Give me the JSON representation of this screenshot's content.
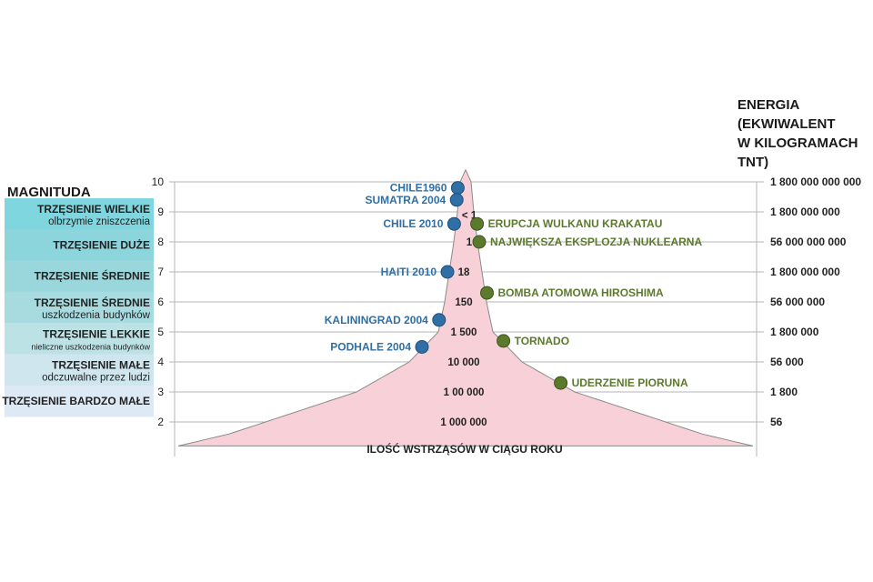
{
  "headings": {
    "magnitude": "MAGNITUDA",
    "energy_lines": [
      "ENERGIA",
      "(EKWIWALENT",
      "W KILOGRAMACH",
      "TNT)"
    ]
  },
  "chart_data": {
    "type": "area",
    "x_label": "ILOŚĆ WSTRZĄSÓW W CIĄGU ROKU",
    "magnitude_scale": [
      10,
      9,
      8,
      7,
      6,
      5,
      4,
      3,
      2
    ],
    "energy_kg_tnt": [
      {
        "magnitude": 10,
        "label": "1 800 000 000 000"
      },
      {
        "magnitude": 9,
        "label": "1 800 000 000"
      },
      {
        "magnitude": 8,
        "label": "56 000 000 000"
      },
      {
        "magnitude": 7,
        "label": "1 800 000 000"
      },
      {
        "magnitude": 6,
        "label": "56 000 000"
      },
      {
        "magnitude": 5,
        "label": "1 800 000"
      },
      {
        "magnitude": 4,
        "label": "56 000"
      },
      {
        "magnitude": 3,
        "label": "1 800"
      },
      {
        "magnitude": 2,
        "label": "56"
      }
    ],
    "quakes_per_year": [
      {
        "magnitude": 8.9,
        "label": "< 1"
      },
      {
        "magnitude": 8,
        "label": "1"
      },
      {
        "magnitude": 7,
        "label": "18"
      },
      {
        "magnitude": 6,
        "label": "150"
      },
      {
        "magnitude": 5,
        "label": "1 500"
      },
      {
        "magnitude": 4,
        "label": "10 000"
      },
      {
        "magnitude": 3,
        "label": "1 00 000"
      },
      {
        "magnitude": 2,
        "label": "1 000 000"
      }
    ],
    "categories": [
      {
        "title": "TRZĘSIENIE WIELKIE",
        "subtitle": "olbrzymie zniszczenia",
        "color": "#7fd6df"
      },
      {
        "title": "TRZĘSIENIE DUŻE",
        "subtitle": "",
        "color": "#8dd5dc"
      },
      {
        "title": "TRZĘSIENIE ŚREDNIE",
        "subtitle": "",
        "color": "#9ad7dd"
      },
      {
        "title": "TRZĘSIENIE ŚREDNIE",
        "subtitle": "uszkodzenia budynków",
        "color": "#a8dbe0"
      },
      {
        "title": "TRZĘSIENIE LEKKIE",
        "subtitle": "nieliczne uszkodzenia budynków",
        "color": "#bde2e6"
      },
      {
        "title": "TRZĘSIENIE MAŁE",
        "subtitle": "odczuwalne przez ludzi",
        "color": "#cfe6ef"
      },
      {
        "title": "TRZĘSIENIE BARDZO MAŁE",
        "subtitle": "",
        "color": "#dde9f5"
      }
    ],
    "earthquakes": [
      {
        "label": "CHILE1960",
        "magnitude": 9.8
      },
      {
        "label": "SUMATRA 2004",
        "magnitude": 9.4
      },
      {
        "label": "CHILE 2010",
        "magnitude": 8.6
      },
      {
        "label": "HAITI 2010",
        "magnitude": 7.0
      },
      {
        "label": "KALININGRAD 2004",
        "magnitude": 5.4
      },
      {
        "label": "PODHALE 2004",
        "magnitude": 4.5
      }
    ],
    "equivalents": [
      {
        "label": "ERUPCJA WULKANU KRAKATAU",
        "magnitude": 8.6
      },
      {
        "label": "NAJWIĘKSZA EKSPLOZJA NUKLEARNA",
        "magnitude": 8.0
      },
      {
        "label": "BOMBA ATOMOWA HIROSHIMA",
        "magnitude": 6.3
      },
      {
        "label": "TORNADO",
        "magnitude": 4.7
      },
      {
        "label": "UDERZENIE PIORUNA",
        "magnitude": 3.3
      }
    ],
    "colors": {
      "earthquake": "#2f6fa5",
      "equivalent": "#5b7a2c",
      "area_fill": "#f7d0d8",
      "area_stroke": "#8a8a8a",
      "grid": "#b5b5b5"
    }
  }
}
